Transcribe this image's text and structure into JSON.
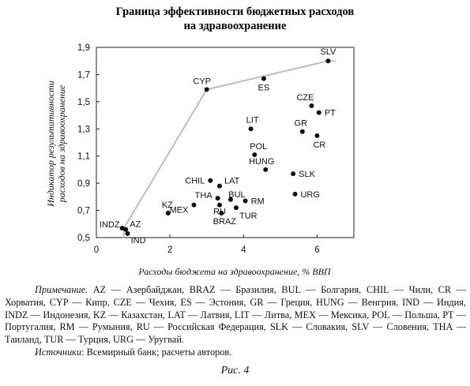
{
  "chart_data": {
    "type": "scatter",
    "title_line1": "Граница эффективности бюджетных расходов",
    "title_line2": "на здравоохранение",
    "xlabel": "Расходы бюджета на здравоохранение, % ВВП",
    "ylabel_line1": "Индикатор результативности",
    "ylabel_line2": "расходов на здравоохранение",
    "xlim": [
      0,
      7
    ],
    "ylim": [
      0.5,
      1.9
    ],
    "x_ticks": [
      0,
      2,
      4,
      6
    ],
    "y_ticks": [
      0.5,
      0.7,
      0.9,
      1.1,
      1.3,
      1.5,
      1.7,
      1.9
    ],
    "y_tick_labels": [
      "0,5",
      "0,7",
      "0,9",
      "1,1",
      "1,3",
      "1,5",
      "1,7",
      "1,9"
    ],
    "grid": false,
    "points": [
      {
        "label": "SLV",
        "x": 6.3,
        "y": 1.8
      },
      {
        "label": "ES",
        "x": 4.55,
        "y": 1.67
      },
      {
        "label": "CYP",
        "x": 3.0,
        "y": 1.59
      },
      {
        "label": "CZE",
        "x": 5.85,
        "y": 1.47
      },
      {
        "label": "PT",
        "x": 6.05,
        "y": 1.42
      },
      {
        "label": "LIT",
        "x": 4.2,
        "y": 1.3
      },
      {
        "label": "GR",
        "x": 5.6,
        "y": 1.28
      },
      {
        "label": "CR",
        "x": 6.0,
        "y": 1.25
      },
      {
        "label": "POL",
        "x": 4.3,
        "y": 1.11
      },
      {
        "label": "HUNG",
        "x": 4.6,
        "y": 1.0
      },
      {
        "label": "SLK",
        "x": 5.35,
        "y": 0.97
      },
      {
        "label": "CHIL",
        "x": 3.1,
        "y": 0.92
      },
      {
        "label": "LAT",
        "x": 3.35,
        "y": 0.88
      },
      {
        "label": "URG",
        "x": 5.4,
        "y": 0.82
      },
      {
        "label": "BUL",
        "x": 3.65,
        "y": 0.78
      },
      {
        "label": "THA",
        "x": 3.3,
        "y": 0.79
      },
      {
        "label": "RM",
        "x": 4.05,
        "y": 0.77
      },
      {
        "label": "KZ",
        "x": 1.95,
        "y": 0.68
      },
      {
        "label": "RU",
        "x": 3.35,
        "y": 0.74
      },
      {
        "label": "MEX",
        "x": 2.65,
        "y": 0.74
      },
      {
        "label": "TUR",
        "x": 3.8,
        "y": 0.72
      },
      {
        "label": "BRAZ",
        "x": 3.4,
        "y": 0.68
      },
      {
        "label": "INDZ",
        "x": 0.7,
        "y": 0.57
      },
      {
        "label": "AZ",
        "x": 0.8,
        "y": 0.56
      },
      {
        "label": "IND",
        "x": 0.85,
        "y": 0.53
      }
    ],
    "frontier": [
      {
        "x": 0.75,
        "y": 0.5
      },
      {
        "x": 0.75,
        "y": 0.57
      },
      {
        "x": 3.0,
        "y": 1.59
      },
      {
        "x": 6.3,
        "y": 1.8
      },
      {
        "x": 6.5,
        "y": 1.8
      }
    ]
  },
  "note": {
    "label": "Примечание.",
    "text_first": "AZ — Азербайджан, BRAZ — Бразилия, BUL — Болгария, CHIL — Чили,",
    "text_rest": "CR — Хорватия, CYP — Кипр, CZE — Чехия, ES — Эстония, GR — Греция, HUNG — Венгрия, IND — Индия, INDZ — Индонезия, KZ — Казахстан, LAT — Латвия, LIT — Литва, MEX — Мексика, POL — Польша, PT — Португалия, RM — Румыния, RU — Российская Федерация, SLK — Словакия, SLV — Словения, THA — Таиланд, TUR — Турция, URG — Уругвай."
  },
  "sources": {
    "label": "Источники",
    "text": ": Всемирный банк; расчеты авторов."
  },
  "caption": "Рис. 4"
}
